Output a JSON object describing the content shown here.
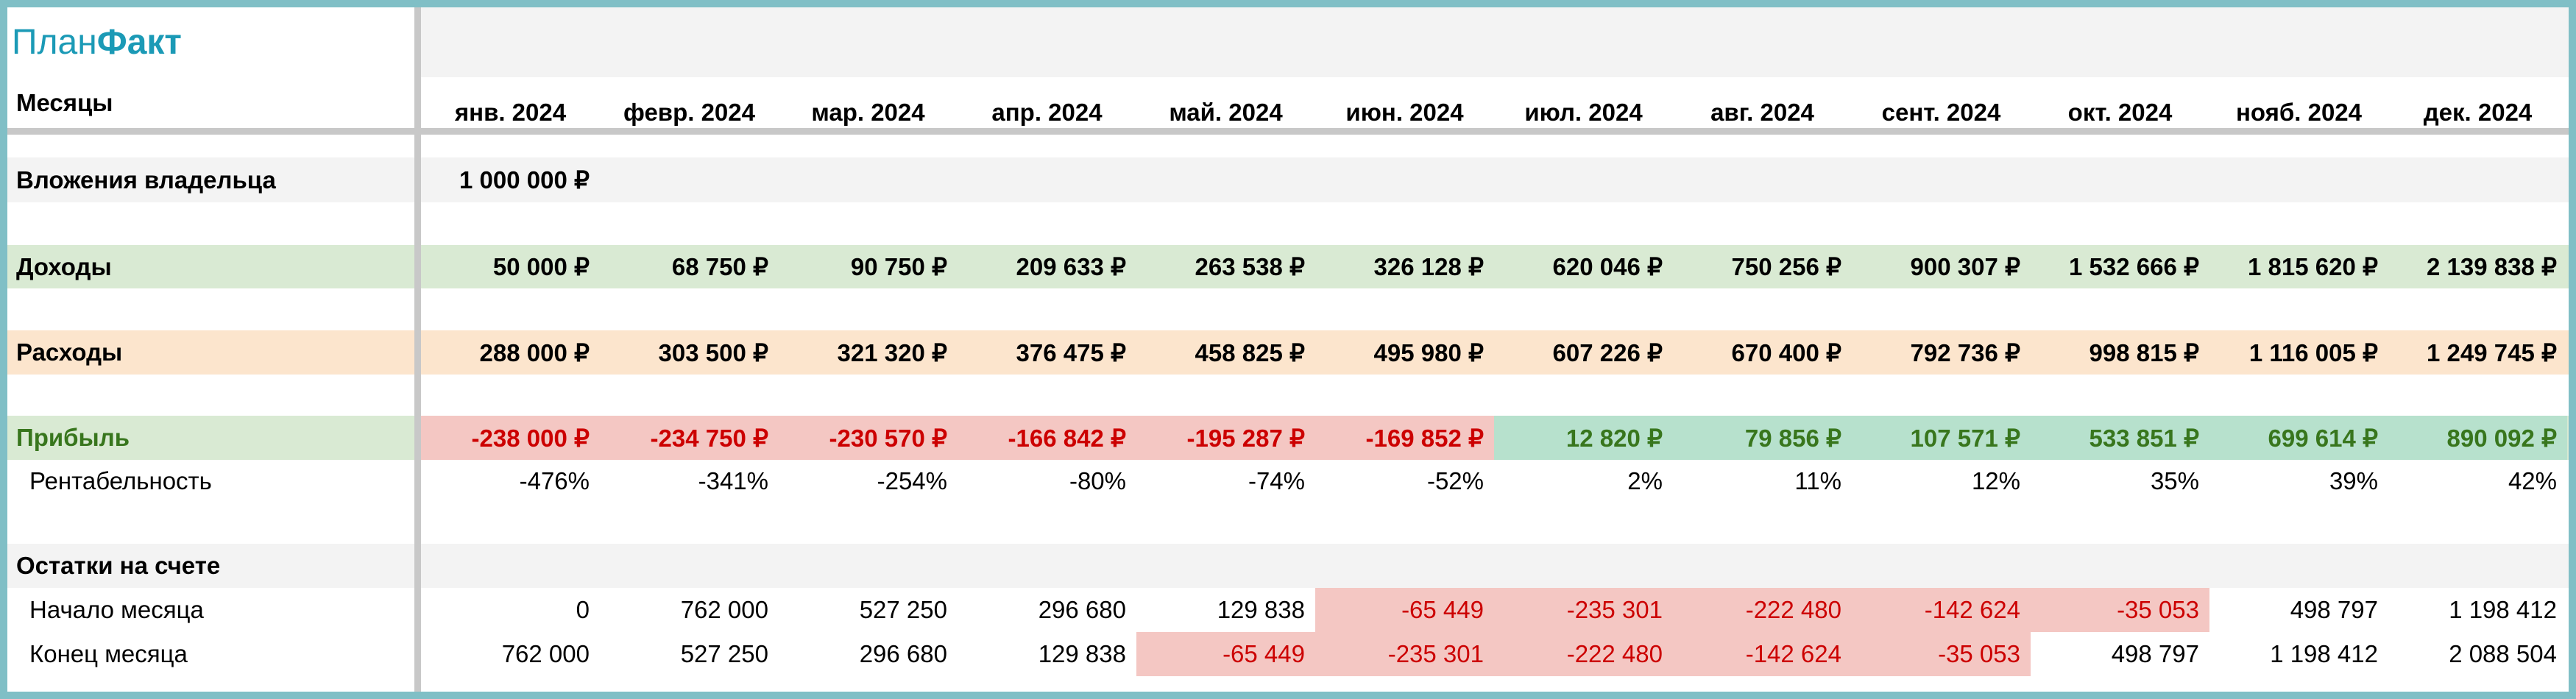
{
  "logo": {
    "plan": "План",
    "fakt": "Факт"
  },
  "months_label": "Месяцы",
  "months": [
    "янв. 2024",
    "февр. 2024",
    "мар. 2024",
    "апр. 2024",
    "май. 2024",
    "июн. 2024",
    "июл. 2024",
    "авг. 2024",
    "сент. 2024",
    "окт. 2024",
    "нояб. 2024",
    "дек. 2024"
  ],
  "owner_investment": {
    "label": "Вложения владельца",
    "values": [
      "1 000 000 ₽"
    ]
  },
  "income": {
    "label": "Доходы",
    "values": [
      "50 000 ₽",
      "68 750 ₽",
      "90 750 ₽",
      "209 633 ₽",
      "263 538 ₽",
      "326 128 ₽",
      "620 046 ₽",
      "750 256 ₽",
      "900 307 ₽",
      "1 532 666 ₽",
      "1 815 620 ₽",
      "2 139 838 ₽"
    ]
  },
  "expenses": {
    "label": "Расходы",
    "values": [
      "288 000 ₽",
      "303 500 ₽",
      "321 320 ₽",
      "376 475 ₽",
      "458 825 ₽",
      "495 980 ₽",
      "607 226 ₽",
      "670 400 ₽",
      "792 736 ₽",
      "998 815 ₽",
      "1 116 005 ₽",
      "1 249 745 ₽"
    ]
  },
  "profit": {
    "label": "Прибыль",
    "values": [
      "-238 000 ₽",
      "-234 750 ₽",
      "-230 570 ₽",
      "-166 842 ₽",
      "-195 287 ₽",
      "-169 852 ₽",
      "12 820 ₽",
      "79 856 ₽",
      "107 571 ₽",
      "533 851 ₽",
      "699 614 ₽",
      "890 092 ₽"
    ]
  },
  "profitability": {
    "label": "Рентабельность",
    "values": [
      "-476%",
      "-341%",
      "-254%",
      "-80%",
      "-74%",
      "-52%",
      "2%",
      "11%",
      "12%",
      "35%",
      "39%",
      "42%"
    ]
  },
  "balance": {
    "label": "Остатки на счете",
    "start": {
      "label": "Начало месяца",
      "values": [
        "0",
        "762 000",
        "527 250",
        "296 680",
        "129 838",
        "-65 449",
        "-235 301",
        "-222 480",
        "-142 624",
        "-35 053",
        "498 797",
        "1 198 412"
      ]
    },
    "end": {
      "label": "Конец месяца",
      "values": [
        "762 000",
        "527 250",
        "296 680",
        "129 838",
        "-65 449",
        "-235 301",
        "-222 480",
        "-142 624",
        "-35 053",
        "498 797",
        "1 198 412",
        "2 088 504"
      ]
    }
  }
}
